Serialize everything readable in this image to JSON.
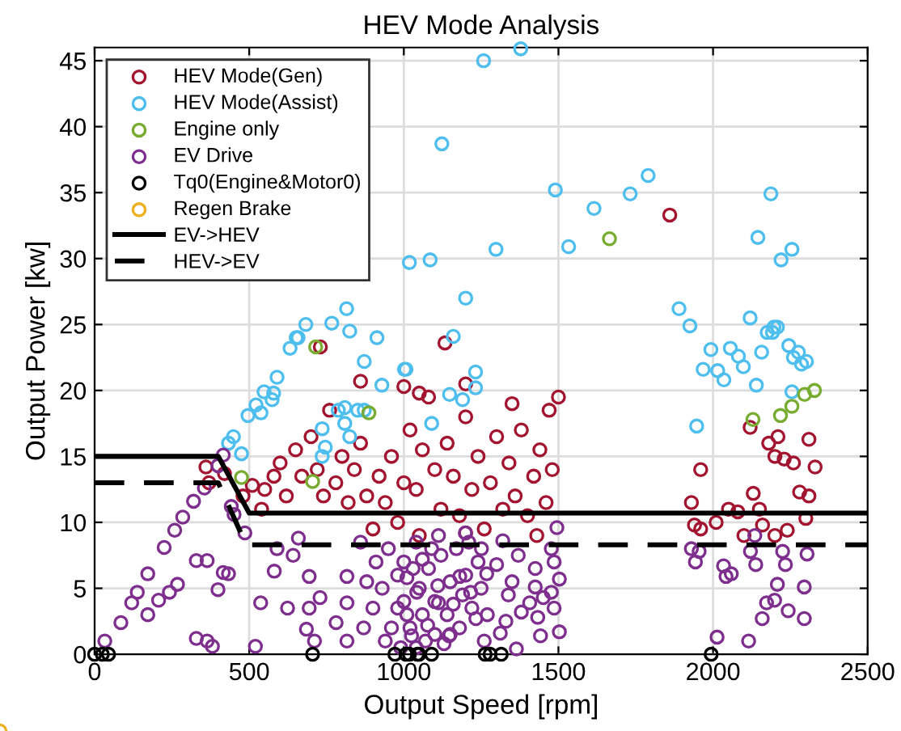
{
  "chart_data": {
    "type": "scatter",
    "title": "HEV Mode Analysis",
    "xlabel": "Output Speed [rpm]",
    "ylabel": "Output Power [kw]",
    "xlim": [
      0,
      2500
    ],
    "xticks": [
      0,
      500,
      1000,
      1500,
      2000,
      2500
    ],
    "ylim": [
      0,
      46
    ],
    "yticks": [
      0,
      5,
      10,
      15,
      20,
      25,
      30,
      35,
      40,
      45
    ],
    "grid": true,
    "legend": "top left",
    "marker": "circle",
    "series": [
      {
        "name": "HEV Mode(Gen)",
        "color": "#a2142f",
        "x": [
          420,
          370,
          360,
          540,
          550,
          580,
          600,
          620,
          650,
          670,
          700,
          720,
          740,
          760,
          780,
          800,
          820,
          840,
          860,
          880,
          900,
          920,
          940,
          960,
          980,
          1000,
          1020,
          1040,
          1060,
          1080,
          1100,
          1120,
          1140,
          1160,
          1180,
          1200,
          1220,
          1240,
          1260,
          1280,
          1300,
          1320,
          1340,
          1360,
          1380,
          1400,
          1420,
          1440,
          1460,
          1480,
          1500,
          1470,
          1350,
          1200,
          1000,
          1050,
          860,
          730,
          1430,
          1200,
          1050,
          1960,
          1930,
          1940,
          1960,
          2010,
          2050,
          2080,
          2130,
          2150,
          2120,
          2180,
          2200,
          2230,
          2210,
          2260,
          2310,
          2330,
          2310,
          2280,
          2160,
          2200,
          2240,
          2300,
          2100,
          480,
          510,
          1133,
          1860
        ],
        "values": [
          13.7,
          13.0,
          14.2,
          11.0,
          12.5,
          13.5,
          14.5,
          12.0,
          15.5,
          13.5,
          16.5,
          14.0,
          12.0,
          18.5,
          13.0,
          15.0,
          11.5,
          14.0,
          16.0,
          12.0,
          9.5,
          13.5,
          11.5,
          15.0,
          10.0,
          13.0,
          17.0,
          12.5,
          15.5,
          19.5,
          14.0,
          11.0,
          16.0,
          13.5,
          10.5,
          18.0,
          12.5,
          15.0,
          9.5,
          13.0,
          16.5,
          11.0,
          14.5,
          12.0,
          17.0,
          10.5,
          13.5,
          15.5,
          11.5,
          14.0,
          19.5,
          18.5,
          19.0,
          20.5,
          20.3,
          19.8,
          20.7,
          23.3,
          9.0,
          9.2,
          9.0,
          14.0,
          11.5,
          9.8,
          9.5,
          10.0,
          11.0,
          10.8,
          12.2,
          11.0,
          17.2,
          16.0,
          15.0,
          14.8,
          16.5,
          14.5,
          16.3,
          14.2,
          12.0,
          12.3,
          9.8,
          9.0,
          9.4,
          10.3,
          9.0,
          12.0,
          12.8,
          23.6,
          33.3
        ]
      },
      {
        "name": "HEV Mode(Assist)",
        "color": "#4dbeee",
        "x": [
          1258,
          1378,
          1123,
          1490,
          1615,
          1732,
          1790,
          1298,
          1533,
          1085,
          1018,
          1200,
          1160,
          2187,
          2145,
          2220,
          2255,
          1890,
          1925,
          2120,
          2175,
          2197,
          1993,
          2056,
          2157,
          2245,
          2276,
          815,
          683,
          767,
          825,
          652,
          632,
          913,
          1968,
          2015,
          2035,
          2082,
          2098,
          2140,
          2260,
          2286,
          2302,
          2255,
          1947,
          2192,
          2208,
          1232,
          1148,
          1190,
          1232,
          1090,
          1007,
          658,
          872,
          1002,
          929,
          590,
          548,
          579,
          574,
          522,
          496,
          538,
          449,
          433,
          475,
          788,
          809,
          851,
          809,
          825,
          736,
          746,
          736,
          872
        ],
        "values": [
          45.0,
          45.9,
          38.7,
          35.2,
          33.8,
          34.9,
          36.3,
          30.7,
          30.9,
          29.9,
          29.7,
          27.0,
          24.1,
          34.9,
          31.6,
          29.9,
          30.7,
          26.2,
          24.9,
          25.5,
          24.4,
          24.8,
          23.1,
          23.2,
          22.9,
          23.4,
          22.9,
          26.2,
          25.0,
          25.1,
          24.5,
          24.0,
          23.2,
          24.0,
          21.6,
          21.5,
          20.8,
          22.6,
          21.8,
          20.4,
          22.5,
          22.0,
          22.2,
          19.9,
          17.3,
          24.4,
          24.8,
          21.4,
          19.7,
          19.3,
          20.2,
          17.5,
          21.6,
          24.0,
          22.2,
          21.6,
          20.4,
          21.0,
          19.9,
          19.8,
          19.3,
          18.9,
          18.1,
          18.3,
          16.5,
          16.0,
          15.2,
          18.5,
          18.7,
          18.5,
          17.5,
          16.5,
          17.1,
          15.7,
          15.0,
          18.5
        ]
      },
      {
        "name": "Engine only",
        "color": "#77ac30",
        "x": [
          715,
          887,
          475,
          705,
          1665,
          2129,
          2218,
          2255,
          2296,
          2328
        ],
        "values": [
          23.3,
          18.3,
          13.4,
          13.1,
          31.5,
          17.8,
          18.1,
          18.8,
          19.7,
          20.0
        ]
      },
      {
        "name": "EV Drive",
        "color": "#7e2f8e",
        "x": [
          33,
          85,
          120,
          138,
          172,
          225,
          259,
          285,
          320,
          355,
          399,
          416,
          172,
          207,
          242,
          268,
          329,
          364,
          416,
          433,
          399,
          329,
          364,
          381,
          520,
          537,
          581,
          642,
          694,
          694,
          685,
          711,
          624,
          729,
          816,
          816,
          781,
          816,
          659,
          590,
          442,
          451,
          486,
          1495,
          1477,
          1486,
          1503,
          1477,
          1486,
          1503,
          1442,
          1433,
          1425,
          1425,
          1407,
          1451,
          1320,
          1268,
          1338,
          1312,
          1364,
          1251,
          1216,
          1233,
          1181,
          1146,
          1112,
          1077,
          1042,
          1025,
          1199,
          1112,
          1930,
          1955,
          1943,
          2034,
          2042,
          2059,
          2013,
          2115,
          2121,
          2135,
          2138,
          2208,
          2234,
          2225,
          2173,
          2199,
          2159,
          2243,
          2295,
          2295,
          2304,
          950,
          980,
          1000,
          1000,
          1020,
          1040,
          1050,
          1060,
          1080,
          1100,
          1100,
          1120,
          1140,
          1150,
          1170,
          1180,
          1200,
          1220,
          1240,
          1260,
          960,
          930,
          940,
          900,
          910,
          880,
          870,
          860,
          990,
          1010,
          1030,
          1070,
          1090,
          1130,
          1160,
          1190,
          1210,
          1250,
          1270,
          1300,
          1330,
          1350,
          1370,
          1380,
          1010,
          1060,
          1110,
          1040,
          980,
          1150
        ],
        "values": [
          1.0,
          2.4,
          3.9,
          4.7,
          6.1,
          8.1,
          9.4,
          10.4,
          11.6,
          12.6,
          14.3,
          15.1,
          3.0,
          4.1,
          4.7,
          5.3,
          7.1,
          7.1,
          6.2,
          6.1,
          4.9,
          1.2,
          1.0,
          0.6,
          0.6,
          3.9,
          6.3,
          7.5,
          5.9,
          3.5,
          1.9,
          1.0,
          3.5,
          4.3,
          5.9,
          3.9,
          2.4,
          1.0,
          8.8,
          8.0,
          11.2,
          10.6,
          9.2,
          9.6,
          8.0,
          7.0,
          5.7,
          4.7,
          3.5,
          1.7,
          1.4,
          2.8,
          6.5,
          5.1,
          3.9,
          4.3,
          8.6,
          6.1,
          4.5,
          1.6,
          0.4,
          8.0,
          4.7,
          2.7,
          5.9,
          1.4,
          3.9,
          2.2,
          4.7,
          1.4,
          9.2,
          9.0,
          8.0,
          7.8,
          7.0,
          6.7,
          5.9,
          6.1,
          1.3,
          1.0,
          7.8,
          9.0,
          6.8,
          5.3,
          6.8,
          7.8,
          3.9,
          4.1,
          2.7,
          3.3,
          2.7,
          5.1,
          7.6,
          8,
          6,
          4,
          7,
          2,
          8.5,
          5,
          3,
          6.5,
          1.5,
          4,
          7.5,
          3,
          5.5,
          8,
          2,
          6,
          3.5,
          7,
          1,
          2,
          5,
          1,
          3.5,
          7,
          5.5,
          2,
          8.5,
          0.5,
          5.8,
          6.5,
          1.0,
          8.0,
          0.8,
          3.8,
          4.5,
          8.5,
          5,
          3,
          6.8,
          2.5,
          5.5,
          7.5,
          3.2,
          3,
          7.2,
          5.2,
          0.5,
          3.5,
          1.5
        ]
      },
      {
        "name": "Tq0(Engine&Motor0)",
        "color": "#000000",
        "x": [
          0,
          25,
          45,
          705,
          971,
          1018,
          1049,
          1090,
          1007,
          1044,
          1263,
          1279,
          1315,
          1994
        ],
        "values": [
          0,
          0,
          0,
          0,
          0,
          0,
          0,
          0,
          0,
          0,
          0,
          0,
          0,
          0
        ]
      },
      {
        "name": "Regen Brake",
        "color": "#edb120"
      },
      {
        "name": "EV->HEV",
        "type": "line",
        "marker": "none",
        "line_style": "solid",
        "color": "#000000",
        "x": [
          0,
          400,
          500,
          2500
        ],
        "values": [
          15,
          15,
          10.7,
          10.7
        ]
      },
      {
        "name": "HEV->EV",
        "type": "line",
        "marker": "none",
        "line_style": "dashed",
        "color": "#000000",
        "x": [
          0,
          400,
          490,
          2500
        ],
        "values": [
          13,
          13,
          8.3,
          8.3
        ]
      }
    ]
  }
}
